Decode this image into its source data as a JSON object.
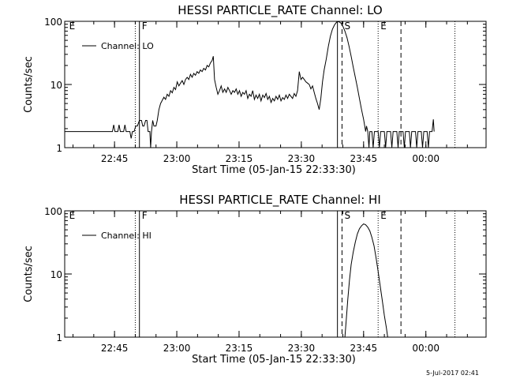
{
  "footer": {
    "date_stamp": "5-Jul-2017 02:41"
  },
  "chart_data": [
    {
      "type": "line",
      "title": "HESSI PARTICLE_RATE Channel: LO",
      "xlabel": "Start Time (05-Jan-15 22:33:30)",
      "ylabel": "Counts/sec",
      "y_scale": "log",
      "ylim": [
        1,
        100
      ],
      "y_ticks": [
        "1",
        "10",
        "100"
      ],
      "xlim_minutes": [
        -0.5,
        101
      ],
      "x_ticks": [
        {
          "label": "22:45",
          "t": 11.5
        },
        {
          "label": "23:00",
          "t": 26.5
        },
        {
          "label": "23:15",
          "t": 41.5
        },
        {
          "label": "23:30",
          "t": 56.5
        },
        {
          "label": "23:45",
          "t": 71.5
        },
        {
          "label": "00:00",
          "t": 86.5
        }
      ],
      "legend": {
        "label": "Channel: LO",
        "placement": "top-left"
      },
      "grid": false,
      "markers": [
        {
          "label": "E",
          "t": 0,
          "style": "none"
        },
        {
          "label": "",
          "t": 16.5,
          "style": "dotted"
        },
        {
          "label": "F",
          "t": 17.5,
          "style": "solid"
        },
        {
          "label": "",
          "t": 65.2,
          "style": "solid"
        },
        {
          "label": "S",
          "t": 66.3,
          "style": "dashed"
        },
        {
          "label": "E",
          "t": 75.0,
          "style": "dotted"
        },
        {
          "label": "",
          "t": 80.5,
          "style": "dashed"
        },
        {
          "label": "",
          "t": 93.5,
          "style": "dotted"
        }
      ],
      "series": [
        {
          "name": "Channel: LO",
          "points": [
            [
              -0.5,
              1.8
            ],
            [
              11,
              1.8
            ],
            [
              11.3,
              2.3
            ],
            [
              11.6,
              1.8
            ],
            [
              12.3,
              1.8
            ],
            [
              12.6,
              2.3
            ],
            [
              12.9,
              1.8
            ],
            [
              13.7,
              1.8
            ],
            [
              14,
              2.3
            ],
            [
              14.3,
              1.8
            ],
            [
              15.2,
              1.8
            ],
            [
              15.5,
              1.4
            ],
            [
              15.8,
              1.8
            ],
            [
              16.2,
              1.8
            ],
            [
              16.6,
              2.2
            ],
            [
              17,
              2.2
            ],
            [
              17.5,
              2.7
            ],
            [
              18,
              2.7
            ],
            [
              18.3,
              2.2
            ],
            [
              18.6,
              2.2
            ],
            [
              19,
              2.7
            ],
            [
              19.3,
              2.7
            ],
            [
              19.6,
              1.8
            ],
            [
              20,
              1.8
            ],
            [
              20.2,
              1.0
            ],
            [
              20.4,
              1.8
            ],
            [
              20.7,
              2.7
            ],
            [
              21,
              2.2
            ],
            [
              21.5,
              2.2
            ],
            [
              21.8,
              2.7
            ],
            [
              22.2,
              4.0
            ],
            [
              22.6,
              5.0
            ],
            [
              23,
              5.6
            ],
            [
              23.4,
              6.3
            ],
            [
              23.8,
              5.8
            ],
            [
              24.2,
              7.0
            ],
            [
              24.6,
              6.5
            ],
            [
              25,
              8.0
            ],
            [
              25.4,
              7.4
            ],
            [
              25.8,
              9.0
            ],
            [
              26.2,
              8.3
            ],
            [
              26.6,
              11.0
            ],
            [
              27,
              9.5
            ],
            [
              27.4,
              10.5
            ],
            [
              27.8,
              11.5
            ],
            [
              28.2,
              10.0
            ],
            [
              28.6,
              12.0
            ],
            [
              29,
              13.0
            ],
            [
              29.4,
              12.0
            ],
            [
              29.8,
              14.5
            ],
            [
              30.2,
              13.0
            ],
            [
              30.6,
              15.0
            ],
            [
              31,
              14.0
            ],
            [
              31.4,
              16.0
            ],
            [
              31.8,
              15.0
            ],
            [
              32.2,
              17.0
            ],
            [
              32.6,
              16.0
            ],
            [
              33,
              18.0
            ],
            [
              33.4,
              17.0
            ],
            [
              33.8,
              20.0
            ],
            [
              34.2,
              19.0
            ],
            [
              34.6,
              22.0
            ],
            [
              35,
              24.0
            ],
            [
              35.3,
              28.0
            ],
            [
              35.6,
              12.0
            ],
            [
              36,
              9.0
            ],
            [
              36.4,
              7.0
            ],
            [
              36.8,
              8.0
            ],
            [
              37.2,
              9.5
            ],
            [
              37.6,
              7.5
            ],
            [
              38,
              8.5
            ],
            [
              38.4,
              7.5
            ],
            [
              38.8,
              9.0
            ],
            [
              39.2,
              8.0
            ],
            [
              39.6,
              7.0
            ],
            [
              40,
              8.0
            ],
            [
              40.4,
              7.5
            ],
            [
              40.8,
              8.5
            ],
            [
              41.2,
              7.0
            ],
            [
              41.6,
              8.0
            ],
            [
              42,
              6.5
            ],
            [
              42.4,
              7.5
            ],
            [
              42.8,
              7.0
            ],
            [
              43.2,
              8.0
            ],
            [
              43.6,
              6.0
            ],
            [
              44,
              7.0
            ],
            [
              44.4,
              6.5
            ],
            [
              44.8,
              8.0
            ],
            [
              45.2,
              5.8
            ],
            [
              45.6,
              6.8
            ],
            [
              46,
              6.0
            ],
            [
              46.4,
              7.0
            ],
            [
              46.8,
              5.5
            ],
            [
              47.2,
              6.8
            ],
            [
              47.6,
              6.2
            ],
            [
              48,
              7.2
            ],
            [
              48.4,
              5.8
            ],
            [
              48.8,
              6.5
            ],
            [
              49.2,
              5.2
            ],
            [
              49.6,
              6.0
            ],
            [
              50,
              5.5
            ],
            [
              50.4,
              6.5
            ],
            [
              50.8,
              5.8
            ],
            [
              51.2,
              6.8
            ],
            [
              51.6,
              5.5
            ],
            [
              52,
              6.2
            ],
            [
              52.4,
              5.8
            ],
            [
              52.8,
              6.8
            ],
            [
              53.2,
              6.0
            ],
            [
              53.6,
              7.0
            ],
            [
              54,
              6.5
            ],
            [
              54.4,
              6.0
            ],
            [
              54.8,
              7.2
            ],
            [
              55.2,
              6.5
            ],
            [
              55.6,
              8.0
            ],
            [
              56,
              16.0
            ],
            [
              56.4,
              12.0
            ],
            [
              56.8,
              13.0
            ],
            [
              57.2,
              12.0
            ],
            [
              57.6,
              11.0
            ],
            [
              58,
              10.5
            ],
            [
              58.4,
              10.0
            ],
            [
              58.8,
              8.5
            ],
            [
              59.2,
              9.5
            ],
            [
              59.6,
              7.5
            ],
            [
              60,
              6.0
            ],
            [
              60.4,
              5.0
            ],
            [
              60.8,
              4.0
            ],
            [
              61.2,
              6.0
            ],
            [
              61.6,
              11.0
            ],
            [
              62,
              17.0
            ],
            [
              62.5,
              25.0
            ],
            [
              63,
              40.0
            ],
            [
              63.5,
              58.0
            ],
            [
              64,
              75.0
            ],
            [
              64.5,
              88.0
            ],
            [
              65,
              97.0
            ],
            [
              65.5,
              99.0
            ],
            [
              66,
              94.0
            ],
            [
              66.5,
              84.0
            ],
            [
              67,
              70.0
            ],
            [
              67.5,
              55.0
            ],
            [
              68,
              40.0
            ],
            [
              68.5,
              28.0
            ],
            [
              69,
              19.0
            ],
            [
              69.5,
              13.0
            ],
            [
              70,
              9.0
            ],
            [
              70.5,
              6.0
            ],
            [
              71,
              4.0
            ],
            [
              71.5,
              2.8
            ],
            [
              72,
              1.8
            ],
            [
              72.2,
              2.2
            ],
            [
              72.5,
              1.8
            ],
            [
              72.8,
              1.0
            ],
            [
              73,
              1.8
            ],
            [
              73.5,
              1.8
            ],
            [
              73.8,
              1.0
            ],
            [
              74.1,
              1.8
            ],
            [
              75,
              1.8
            ],
            [
              75.3,
              1.0
            ],
            [
              75.6,
              1.8
            ],
            [
              76.5,
              1.8
            ],
            [
              76.8,
              1.0
            ],
            [
              77.1,
              1.8
            ],
            [
              78,
              1.8
            ],
            [
              78.3,
              1.0
            ],
            [
              78.6,
              1.8
            ],
            [
              79.5,
              1.8
            ],
            [
              79.8,
              1.0
            ],
            [
              80.1,
              1.8
            ],
            [
              81,
              1.8
            ],
            [
              81.3,
              1.0
            ],
            [
              81.6,
              1.8
            ],
            [
              82.5,
              1.8
            ],
            [
              82.8,
              1.0
            ],
            [
              83.1,
              1.8
            ],
            [
              84,
              1.8
            ],
            [
              84.3,
              1.0
            ],
            [
              84.6,
              1.8
            ],
            [
              85.4,
              1.8
            ],
            [
              85.7,
              1.0
            ],
            [
              86,
              1.8
            ],
            [
              86.8,
              1.8
            ],
            [
              87.1,
              1.0
            ],
            [
              87.4,
              1.8
            ],
            [
              88,
              1.8
            ],
            [
              88.3,
              2.8
            ],
            [
              88.5,
              1.8
            ]
          ]
        }
      ]
    },
    {
      "type": "line",
      "title": "HESSI PARTICLE_RATE Channel: HI",
      "xlabel": "Start Time (05-Jan-15 22:33:30)",
      "ylabel": "Counts/sec",
      "y_scale": "log",
      "ylim": [
        1,
        100
      ],
      "y_ticks": [
        "1",
        "10",
        "100"
      ],
      "xlim_minutes": [
        -0.5,
        101
      ],
      "x_ticks": [
        {
          "label": "22:45",
          "t": 11.5
        },
        {
          "label": "23:00",
          "t": 26.5
        },
        {
          "label": "23:15",
          "t": 41.5
        },
        {
          "label": "23:30",
          "t": 56.5
        },
        {
          "label": "23:45",
          "t": 71.5
        },
        {
          "label": "00:00",
          "t": 86.5
        }
      ],
      "legend": {
        "label": "Channel: HI",
        "placement": "top-left"
      },
      "grid": false,
      "markers": [
        {
          "label": "E",
          "t": 0,
          "style": "none"
        },
        {
          "label": "",
          "t": 16.5,
          "style": "dotted"
        },
        {
          "label": "F",
          "t": 17.5,
          "style": "solid"
        },
        {
          "label": "",
          "t": 65.2,
          "style": "solid"
        },
        {
          "label": "S",
          "t": 66.3,
          "style": "dashed"
        },
        {
          "label": "E",
          "t": 75.0,
          "style": "dotted"
        },
        {
          "label": "",
          "t": 80.5,
          "style": "dashed"
        },
        {
          "label": "",
          "t": 93.5,
          "style": "dotted"
        }
      ],
      "series": [
        {
          "name": "Channel: HI",
          "points": [
            [
              67.0,
              1.0
            ],
            [
              67.3,
              1.8
            ],
            [
              67.7,
              4.0
            ],
            [
              68.1,
              8.0
            ],
            [
              68.5,
              14.0
            ],
            [
              69,
              22.0
            ],
            [
              69.5,
              32.0
            ],
            [
              70,
              43.0
            ],
            [
              70.5,
              52.0
            ],
            [
              71,
              58.0
            ],
            [
              71.5,
              62.0
            ],
            [
              72,
              60.0
            ],
            [
              72.5,
              55.0
            ],
            [
              73,
              48.0
            ],
            [
              73.5,
              38.0
            ],
            [
              74,
              28.0
            ],
            [
              74.5,
              18.0
            ],
            [
              75,
              11.0
            ],
            [
              75.5,
              6.5
            ],
            [
              76,
              3.8
            ],
            [
              76.5,
              2.2
            ],
            [
              77,
              1.4
            ],
            [
              77.3,
              1.0
            ]
          ]
        }
      ]
    }
  ]
}
